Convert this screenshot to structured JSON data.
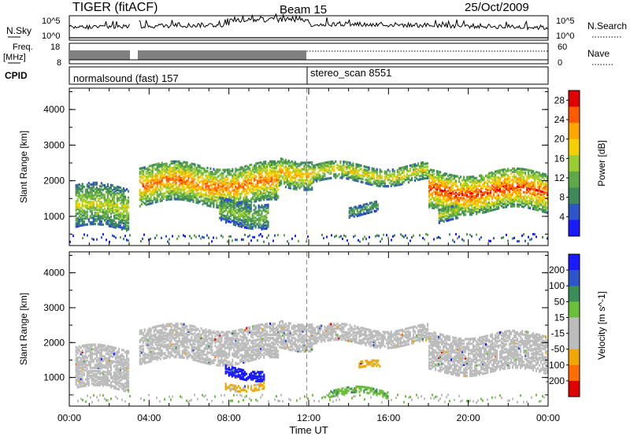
{
  "header": {
    "radar": "TIGER (fitACF)",
    "beam": "Beam 15",
    "date": "25/Oct/2009"
  },
  "strip": {
    "nsky_label": "N.Sky",
    "nsky_ticks": [
      "10^5",
      "10^0"
    ],
    "nsearch_label": "N.Search",
    "freq_label": "Freq.",
    "freq_unit": "[MHz]",
    "freq_ticks": [
      "18",
      "8"
    ],
    "nave_ticks": [
      "60",
      "0"
    ],
    "nave_label": "Nave",
    "cpid_label": "CPID",
    "cpid_segments": [
      "normalsound (fast) 157",
      "stereo_scan 8551"
    ]
  },
  "colors": {
    "power": [
      "#1a1aff",
      "#2d54c8",
      "#3f8a5a",
      "#5fa84a",
      "#9acd32",
      "#f5d000",
      "#ffa500",
      "#ff5a00",
      "#e00000"
    ],
    "velocity": [
      "#1a1aff",
      "#2d54c8",
      "#3b8e5a",
      "#6abf3a",
      "#bcbcbc",
      "#bcbcbc",
      "#f0a800",
      "#ff6e00",
      "#e00000"
    ]
  },
  "chart_data": [
    {
      "type": "heatmap",
      "name": "power",
      "ylabel": "Slant Range [km]",
      "xlabel": "Time UT",
      "x_ticks": [
        "00:00",
        "04:00",
        "08:00",
        "12:00",
        "16:00",
        "20:00",
        "00:00"
      ],
      "y_ticks": [
        1000,
        2000,
        3000,
        4000
      ],
      "ylim": [
        180,
        4600
      ],
      "xlim_hours": [
        0,
        24
      ],
      "colorbar_label": "Power [dB]",
      "colorbar_ticks": [
        4,
        8,
        12,
        16,
        20,
        24,
        28
      ],
      "colorbar_range": [
        0,
        30
      ],
      "data_gap_hours": [
        3.05,
        3.45
      ],
      "cpid_change_hour": 11.9,
      "echo_bands": [
        {
          "t0": 0.3,
          "t1": 3.0,
          "r0": 700,
          "r1": 1900,
          "power": 14
        },
        {
          "t0": 3.5,
          "t1": 10.5,
          "r0": 1400,
          "r1": 2500,
          "power": 20
        },
        {
          "t0": 10.5,
          "t1": 12.2,
          "r0": 1900,
          "r1": 2700,
          "power": 18
        },
        {
          "t0": 12.2,
          "t1": 18.0,
          "r0": 2000,
          "r1": 2500,
          "power": 16
        },
        {
          "t0": 18.0,
          "t1": 24.0,
          "r0": 1200,
          "r1": 2300,
          "power": 22
        },
        {
          "t0": 7.5,
          "t1": 10.0,
          "r0": 800,
          "r1": 1500,
          "power": 12
        },
        {
          "t0": 14.0,
          "t1": 15.5,
          "r0": 1100,
          "r1": 1400,
          "power": 10
        },
        {
          "t0": 18.5,
          "t1": 19.5,
          "r0": 900,
          "r1": 1300,
          "power": 14
        }
      ]
    },
    {
      "type": "heatmap",
      "name": "velocity",
      "ylabel": "Slant Range [km]",
      "xlabel": "Time UT",
      "x_ticks": [
        "00:00",
        "04:00",
        "08:00",
        "12:00",
        "16:00",
        "20:00",
        "00:00"
      ],
      "y_ticks": [
        1000,
        2000,
        3000,
        4000
      ],
      "ylim": [
        180,
        4600
      ],
      "xlim_hours": [
        0,
        24
      ],
      "colorbar_label": "Velocity [m s^-1]",
      "colorbar_ticks": [
        200,
        100,
        50,
        15,
        -15,
        -50,
        -100,
        -200
      ],
      "colorbar_range": [
        -250,
        250
      ],
      "data_gap_hours": [
        3.05,
        3.45
      ],
      "cpid_change_hour": 11.9,
      "echo_bands": [
        {
          "t0": 0.3,
          "t1": 3.0,
          "r0": 700,
          "r1": 1900,
          "velocity": 0
        },
        {
          "t0": 3.5,
          "t1": 10.5,
          "r0": 1500,
          "r1": 2500,
          "velocity": 0
        },
        {
          "t0": 10.5,
          "t1": 12.2,
          "r0": 1900,
          "r1": 2700,
          "velocity": 0
        },
        {
          "t0": 12.2,
          "t1": 18.0,
          "r0": 2000,
          "r1": 2500,
          "velocity": 0
        },
        {
          "t0": 18.0,
          "t1": 24.0,
          "r0": 1200,
          "r1": 2300,
          "velocity": 0
        },
        {
          "t0": 7.8,
          "t1": 9.8,
          "r0": 1050,
          "r1": 1350,
          "velocity": 220
        },
        {
          "t0": 7.8,
          "t1": 9.8,
          "r0": 750,
          "r1": 950,
          "velocity": -60
        },
        {
          "t0": 14.5,
          "t1": 15.6,
          "r0": 1250,
          "r1": 1450,
          "velocity": -70
        },
        {
          "t0": 13.0,
          "t1": 16.0,
          "r0": 500,
          "r1": 700,
          "velocity": 40
        }
      ]
    }
  ]
}
